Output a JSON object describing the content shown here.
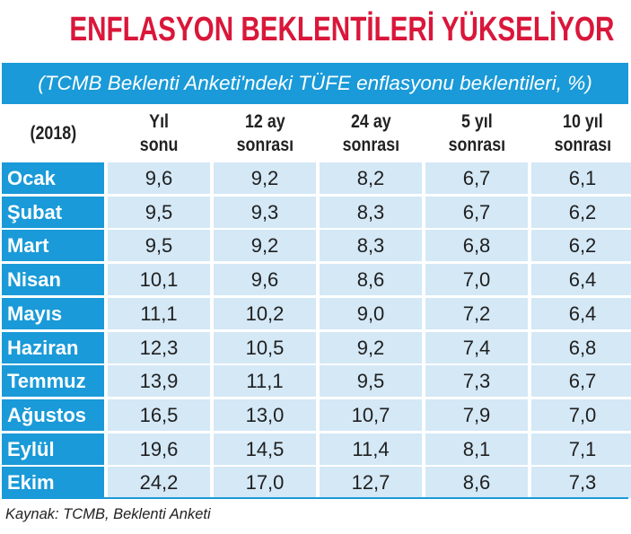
{
  "title": "ENFLASYON BEKLENTİLERİ YÜKSELİYOR",
  "subtitle": "(TCMB Beklenti Anketi'ndeki TÜFE enflasyonu beklentileri, %)",
  "source": "Kaynak: TCMB, Beklenti Anketi",
  "colors": {
    "title": "#d9173a",
    "header_blue": "#1a9ad8",
    "cell_blue": "#d4e8f6"
  },
  "chart_data": {
    "type": "table",
    "title": "ENFLASYON BEKLENTİLERİ YÜKSELİYOR",
    "subtitle": "(TCMB Beklenti Anketi'ndeki TÜFE enflasyonu beklentileri, %)",
    "corner": "(2018)",
    "columns": [
      [
        "Yıl",
        "sonu"
      ],
      [
        "12 ay",
        "sonrası"
      ],
      [
        "24 ay",
        "sonrası"
      ],
      [
        "5 yıl",
        "sonrası"
      ],
      [
        "10 yıl",
        "sonrası"
      ]
    ],
    "rows": [
      {
        "label": "Ocak",
        "values": [
          "9,6",
          "9,2",
          "8,2",
          "6,7",
          "6,1"
        ]
      },
      {
        "label": "Şubat",
        "values": [
          "9,5",
          "9,3",
          "8,3",
          "6,7",
          "6,2"
        ]
      },
      {
        "label": "Mart",
        "values": [
          "9,5",
          "9,2",
          "8,3",
          "6,8",
          "6,2"
        ]
      },
      {
        "label": "Nisan",
        "values": [
          "10,1",
          "9,6",
          "8,6",
          "7,0",
          "6,4"
        ]
      },
      {
        "label": "Mayıs",
        "values": [
          "11,1",
          "10,2",
          "9,0",
          "7,2",
          "6,4"
        ]
      },
      {
        "label": "Haziran",
        "values": [
          "12,3",
          "10,5",
          "9,2",
          "7,4",
          "6,8"
        ]
      },
      {
        "label": "Temmuz",
        "values": [
          "13,9",
          "11,1",
          "9,5",
          "7,3",
          "6,7"
        ]
      },
      {
        "label": "Ağustos",
        "values": [
          "16,5",
          "13,0",
          "10,7",
          "7,9",
          "7,0"
        ]
      },
      {
        "label": "Eylül",
        "values": [
          "19,6",
          "14,5",
          "11,4",
          "8,1",
          "7,1"
        ]
      },
      {
        "label": "Ekim",
        "values": [
          "24,2",
          "17,0",
          "12,7",
          "8,6",
          "7,3"
        ]
      }
    ]
  }
}
